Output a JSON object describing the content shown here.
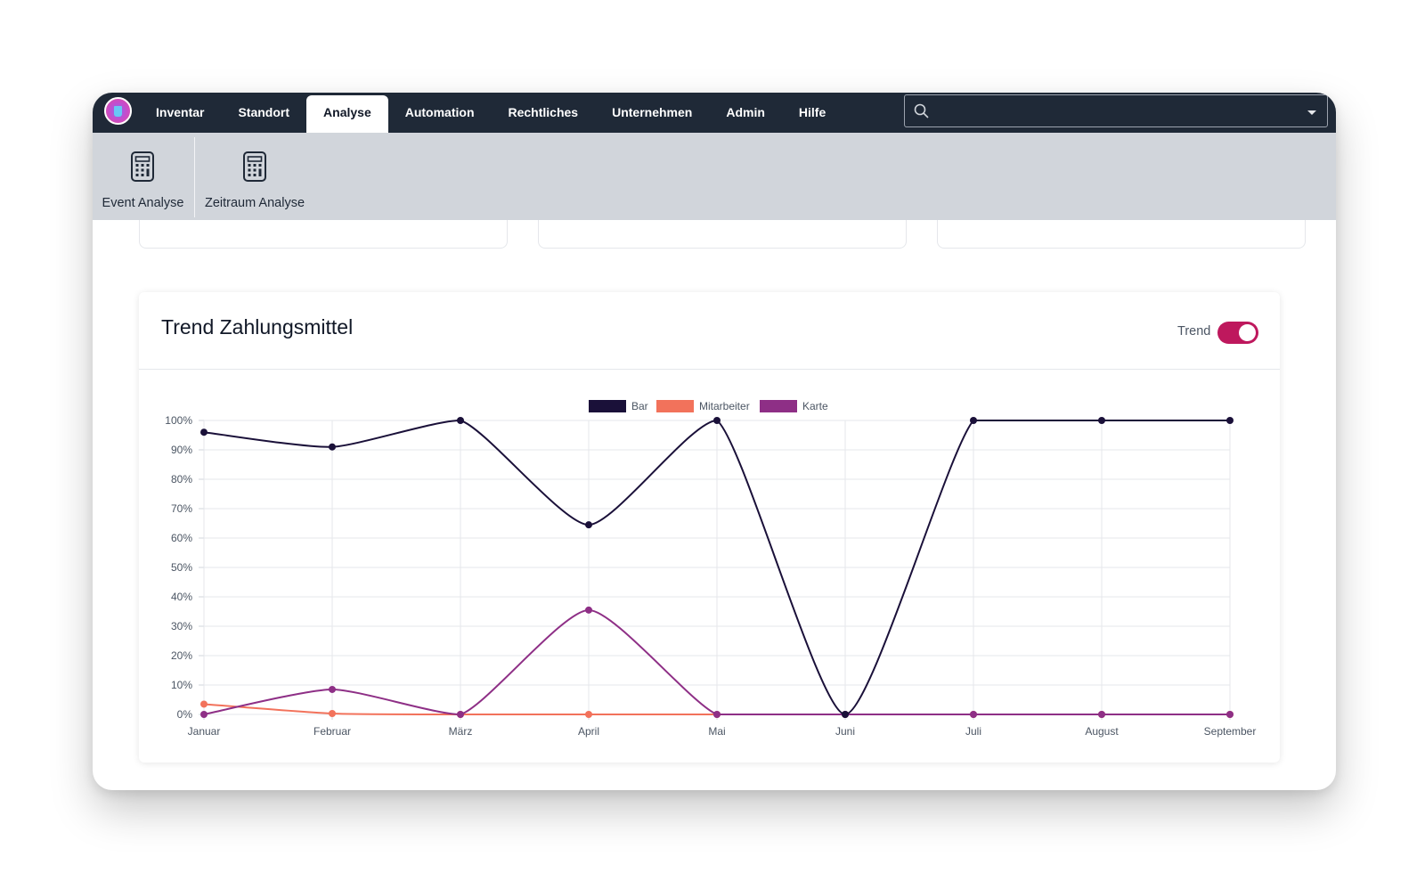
{
  "nav": {
    "items": [
      {
        "label": "Inventar",
        "active": false
      },
      {
        "label": "Standort",
        "active": false
      },
      {
        "label": "Analyse",
        "active": true
      },
      {
        "label": "Automation",
        "active": false
      },
      {
        "label": "Rechtliches",
        "active": false
      },
      {
        "label": "Unternehmen",
        "active": false
      },
      {
        "label": "Admin",
        "active": false
      },
      {
        "label": "Hilfe",
        "active": false
      }
    ],
    "search": {
      "value": "",
      "placeholder": ""
    }
  },
  "ribbon": {
    "items": [
      {
        "label": "Event Analyse",
        "icon": "calculator-icon"
      },
      {
        "label": "Zeitraum Analyse",
        "icon": "calculator-icon"
      }
    ]
  },
  "panel": {
    "title": "Trend Zahlungsmittel",
    "toggle_label": "Trend",
    "toggle_on": true
  },
  "colors": {
    "topbar": "#1f2937",
    "ribbon": "#d1d5db",
    "toggle": "#be185d"
  },
  "chart_data": {
    "type": "line",
    "title": "",
    "xlabel": "",
    "ylabel": "",
    "categories": [
      "Januar",
      "Februar",
      "März",
      "April",
      "Mai",
      "Juni",
      "Juli",
      "August",
      "September"
    ],
    "ylim": [
      0,
      100
    ],
    "yticks": [
      "0%",
      "10%",
      "20%",
      "30%",
      "40%",
      "50%",
      "60%",
      "70%",
      "80%",
      "90%",
      "100%"
    ],
    "y_unit": "%",
    "grid": true,
    "legend": "top-center",
    "series": [
      {
        "name": "Bar",
        "color": "#1a1039",
        "values": [
          96,
          91,
          100,
          64.5,
          100,
          0,
          100,
          100,
          100
        ]
      },
      {
        "name": "Mitarbeiter",
        "color": "#f2725b",
        "values": [
          3.5,
          0.3,
          0,
          0,
          0,
          0,
          0,
          0,
          0
        ]
      },
      {
        "name": "Karte",
        "color": "#8e2f86",
        "values": [
          0,
          8.5,
          0,
          35.5,
          0,
          0,
          0,
          0,
          0
        ]
      }
    ]
  }
}
